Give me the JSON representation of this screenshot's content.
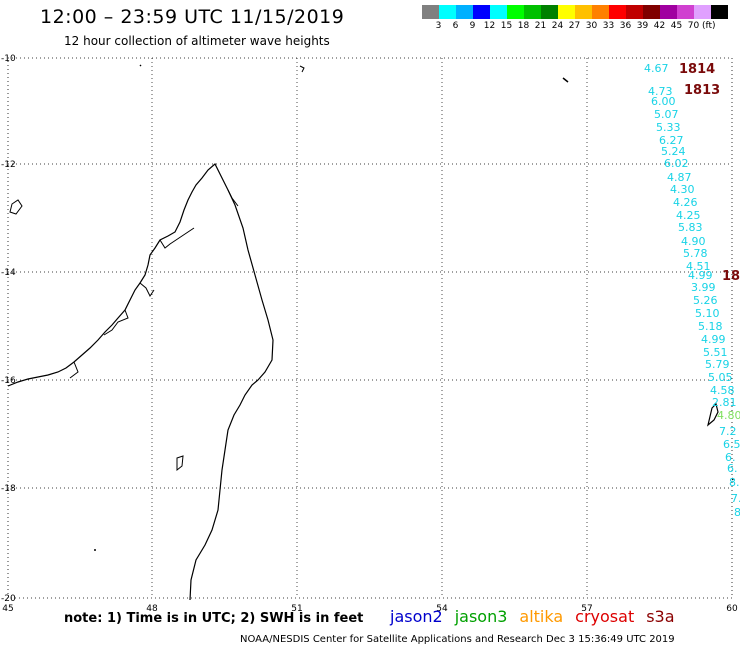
{
  "header": {
    "title": "12:00 – 23:59 UTC 11/15/2019",
    "subtitle": "12 hour collection of altimeter wave heights"
  },
  "legend": {
    "colors": [
      "#808080",
      "#00ffff",
      "#00b0ff",
      "#0000ff",
      "#00ffff",
      "#00ff00",
      "#00c000",
      "#008000",
      "#ffff00",
      "#ffc000",
      "#ff8000",
      "#ff0000",
      "#c00000",
      "#800000",
      "#a000a0",
      "#d040d0",
      "#e0a0ff",
      "#000000"
    ],
    "labels": [
      "3",
      "6",
      "9",
      "12",
      "15",
      "18",
      "21",
      "24",
      "27",
      "30",
      "33",
      "36",
      "39",
      "42",
      "45",
      "70"
    ],
    "unit": "(ft)"
  },
  "axes": {
    "lon_labels": [
      "45",
      "48",
      "51",
      "54",
      "57",
      "60"
    ],
    "lat_labels": [
      "-10",
      "-12",
      "-14",
      "-16",
      "-18",
      "-20"
    ]
  },
  "passes": [
    "1814",
    "1813",
    "18"
  ],
  "observations": [
    "4.67",
    "4.73",
    "6.00",
    "5.07",
    "5.33",
    "6.27",
    "5.24",
    "6.02",
    "4.87",
    "4.30",
    "4.26",
    "4.25",
    "5.83",
    "4.90",
    "5.78",
    "4.51",
    "4.99",
    "3.99",
    "5.26",
    "5.10",
    "5.18",
    "4.99",
    "5.51",
    "5.79",
    "5.05",
    "4.58",
    "2.81",
    "4.80",
    "7.2",
    "6.5",
    "6.",
    "6.",
    "8.",
    "7.",
    "8"
  ],
  "footer": {
    "note": "note:  1) Time is in UTC;  2) SWH is in feet",
    "satellites": [
      {
        "name": "jason2",
        "color": "#0000cc"
      },
      {
        "name": "jason3",
        "color": "#00a000"
      },
      {
        "name": "altika",
        "color": "#ff9900"
      },
      {
        "name": "cryosat",
        "color": "#dd0000"
      },
      {
        "name": "s3a",
        "color": "#8b0000"
      }
    ],
    "credit": "NOAA/NESDIS Center for Satellite Applications and Research    Dec  3 15:36:49 UTC 2019"
  }
}
